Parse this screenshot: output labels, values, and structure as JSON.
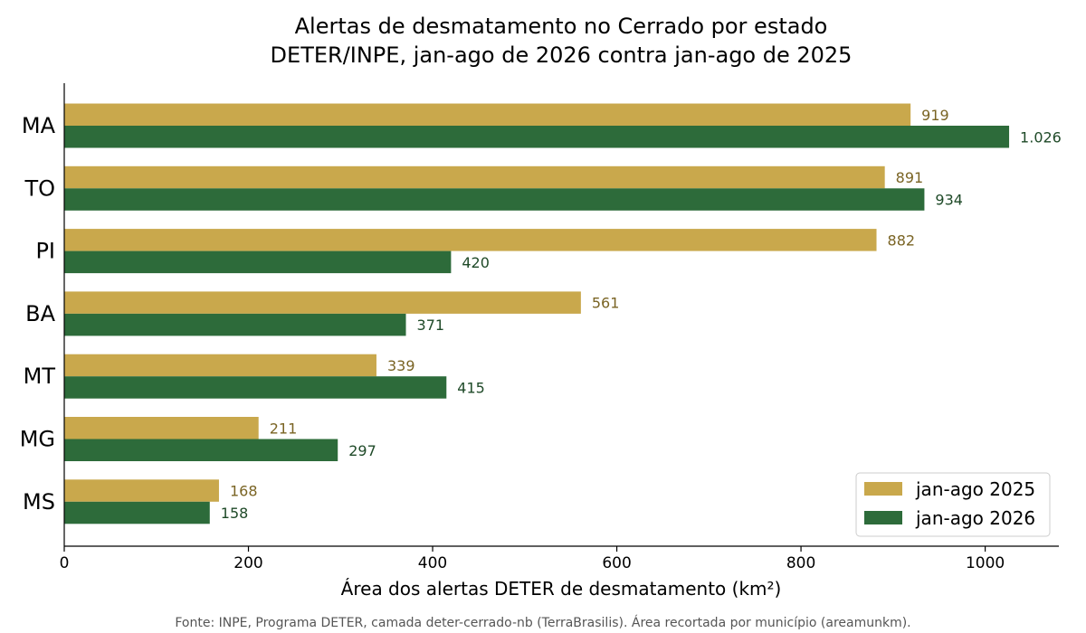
{
  "chart_data": {
    "type": "bar",
    "orientation": "horizontal",
    "title": [
      "Alertas de desmatamento no Cerrado por estado",
      "DETER/INPE, jan-ago de 2026 contra jan-ago de 2025"
    ],
    "xlabel": "Área dos alertas DETER de desmatamento (km²)",
    "ylabel": "",
    "categories": [
      "MA",
      "TO",
      "PI",
      "BA",
      "MT",
      "MG",
      "MS"
    ],
    "series": [
      {
        "name": "jan-ago 2025",
        "color": "#C9A84C",
        "label_color": "#7A6424",
        "values": [
          919,
          891,
          882,
          561,
          339,
          211,
          168
        ],
        "labels": [
          "919",
          "891",
          "882",
          "561",
          "339",
          "211",
          "168"
        ]
      },
      {
        "name": "jan-ago 2026",
        "color": "#2D6B3A",
        "label_color": "#1F4A28",
        "values": [
          1026,
          934,
          420,
          371,
          415,
          297,
          158
        ],
        "labels": [
          "1.026",
          "934",
          "420",
          "371",
          "415",
          "297",
          "158"
        ]
      }
    ],
    "xlim": [
      0,
      1080
    ],
    "xticks": [
      0,
      200,
      400,
      600,
      800,
      1000
    ],
    "grid": false,
    "legend_position": "bottom-right",
    "source": "Fonte: INPE, Programa DETER, camada deter-cerrado-nb (TerraBrasilis). Área recortada por município (areamunkm)."
  }
}
